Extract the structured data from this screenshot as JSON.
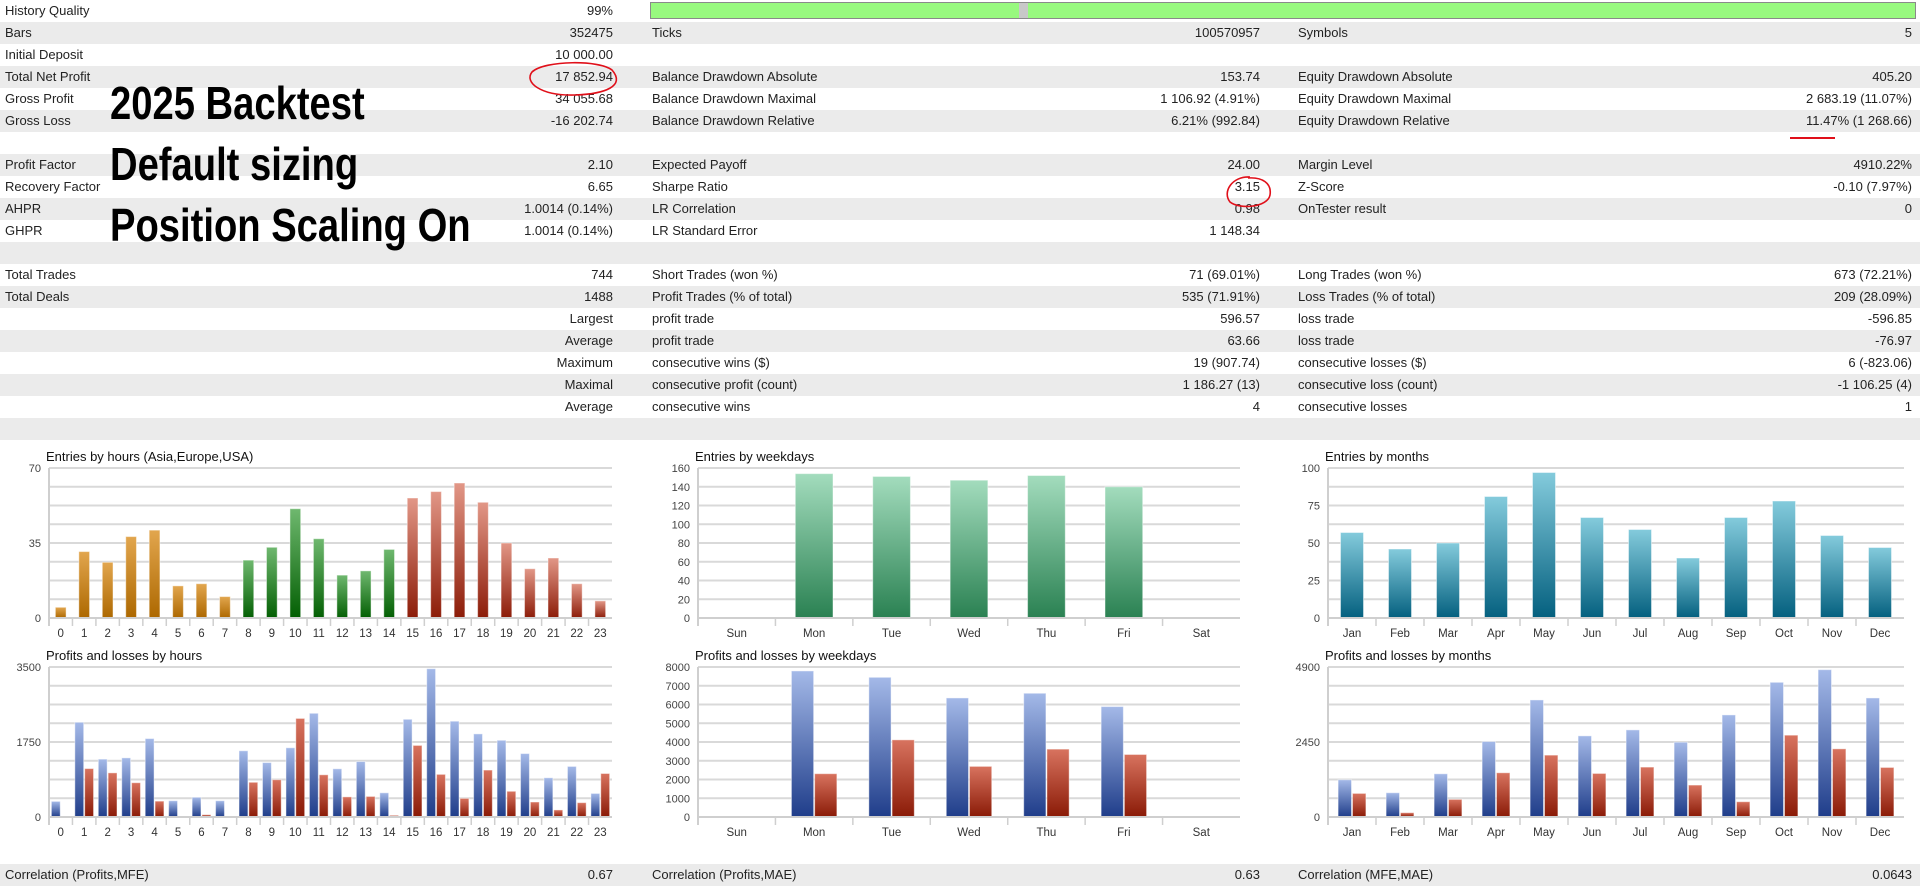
{
  "table": {
    "history_quality_fill": 0.99,
    "rows": [
      {
        "c1l": "History Quality",
        "c1v": "99%",
        "c2l": "",
        "c2v": "",
        "c3l": "",
        "c3v": ""
      },
      {
        "c1l": "Bars",
        "c1v": "352475",
        "c2l": "Ticks",
        "c2v": "100570957",
        "c3l": "Symbols",
        "c3v": "5"
      },
      {
        "c1l": "Initial Deposit",
        "c1v": "10 000.00",
        "c2l": "",
        "c2v": "",
        "c3l": "",
        "c3v": ""
      },
      {
        "c1l": "Total Net Profit",
        "c1v": "17 852.94",
        "c2l": "Balance Drawdown Absolute",
        "c2v": "153.74",
        "c3l": "Equity Drawdown Absolute",
        "c3v": "405.20"
      },
      {
        "c1l": "Gross Profit",
        "c1v": "34 055.68",
        "c2l": "Balance Drawdown Maximal",
        "c2v": "1 106.92 (4.91%)",
        "c3l": "Equity Drawdown Maximal",
        "c3v": "2 683.19 (11.07%)"
      },
      {
        "c1l": "Gross Loss",
        "c1v": "-16 202.74",
        "c2l": "Balance Drawdown Relative",
        "c2v": "6.21% (992.84)",
        "c3l": "Equity Drawdown Relative",
        "c3v": "11.47% (1 268.66)"
      },
      {
        "c1l": "",
        "c1v": "",
        "c2l": "",
        "c2v": "",
        "c3l": "",
        "c3v": ""
      },
      {
        "c1l": "Profit Factor",
        "c1v": "2.10",
        "c2l": "Expected Payoff",
        "c2v": "24.00",
        "c3l": "Margin Level",
        "c3v": "4910.22%"
      },
      {
        "c1l": "Recovery Factor",
        "c1v": "6.65",
        "c2l": "Sharpe Ratio",
        "c2v": "3.15",
        "c3l": "Z-Score",
        "c3v": "-0.10 (7.97%)"
      },
      {
        "c1l": "AHPR",
        "c1v": "1.0014 (0.14%)",
        "c2l": "LR Correlation",
        "c2v": "0.98",
        "c3l": "OnTester result",
        "c3v": "0"
      },
      {
        "c1l": "GHPR",
        "c1v": "1.0014 (0.14%)",
        "c2l": "LR Standard Error",
        "c2v": "1 148.34",
        "c3l": "",
        "c3v": ""
      },
      {
        "c1l": "",
        "c1v": "",
        "c2l": "",
        "c2v": "",
        "c3l": "",
        "c3v": ""
      },
      {
        "c1l": "Total Trades",
        "c1v": "744",
        "c2l": "Short Trades (won %)",
        "c2v": "71 (69.01%)",
        "c3l": "Long Trades (won %)",
        "c3v": "673 (72.21%)"
      },
      {
        "c1l": "Total Deals",
        "c1v": "1488",
        "c2l": "Profit Trades (% of total)",
        "c2v": "535 (71.91%)",
        "c3l": "Loss Trades (% of total)",
        "c3v": "209 (28.09%)"
      },
      {
        "c1l": "",
        "c1v": "Largest",
        "c2l": "profit trade",
        "c2v": "596.57",
        "c3l": "loss trade",
        "c3v": "-596.85"
      },
      {
        "c1l": "",
        "c1v": "Average",
        "c2l": "profit trade",
        "c2v": "63.66",
        "c3l": "loss trade",
        "c3v": "-76.97"
      },
      {
        "c1l": "",
        "c1v": "Maximum",
        "c2l": "consecutive wins ($)",
        "c2v": "19 (907.74)",
        "c3l": "consecutive losses ($)",
        "c3v": "6 (-823.06)"
      },
      {
        "c1l": "",
        "c1v": "Maximal",
        "c2l": "consecutive profit (count)",
        "c2v": "1 186.27 (13)",
        "c3l": "consecutive loss (count)",
        "c3v": "-1 106.25 (4)"
      },
      {
        "c1l": "",
        "c1v": "Average",
        "c2l": "consecutive wins",
        "c2v": "4",
        "c3l": "consecutive losses",
        "c3v": "1"
      },
      {
        "c1l": "",
        "c1v": "",
        "c2l": "",
        "c2v": "",
        "c3l": "",
        "c3v": ""
      }
    ],
    "correlation": {
      "c1l": "Correlation (Profits,MFE)",
      "c1v": "0.67",
      "c2l": "Correlation (Profits,MAE)",
      "c2v": "0.63",
      "c3l": "Correlation (MFE,MAE)",
      "c3v": "0.0643"
    }
  },
  "overlay": {
    "line1": "2025 Backtest",
    "line2": "Default sizing",
    "line3": "Position Scaling On"
  },
  "colors": {
    "annotation": "#e0101a",
    "quality_bar": "#98f97f"
  },
  "chart_data": [
    {
      "type": "bar",
      "title": "Entries by hours (Asia,Europe,USA)",
      "categories": [
        "0",
        "1",
        "2",
        "3",
        "4",
        "5",
        "6",
        "7",
        "8",
        "9",
        "10",
        "11",
        "12",
        "13",
        "14",
        "15",
        "16",
        "17",
        "18",
        "19",
        "20",
        "21",
        "22",
        "23"
      ],
      "series": [
        {
          "values": [
            5,
            31,
            26,
            38,
            41,
            15,
            16,
            10,
            27,
            33,
            51,
            37,
            20,
            22,
            32,
            56,
            59,
            63,
            54,
            35,
            23,
            28,
            16,
            8
          ]
        }
      ],
      "segment_colors": [
        {
          "range": [
            0,
            7
          ],
          "gradient": "orange"
        },
        {
          "range": [
            8,
            14
          ],
          "gradient": "green"
        },
        {
          "range": [
            15,
            23
          ],
          "gradient": "red"
        }
      ],
      "ylim": [
        0,
        70
      ],
      "yticks": [
        0,
        35,
        70
      ],
      "grid_step": 8.75,
      "grid": true
    },
    {
      "type": "bar",
      "title": "Entries by weekdays",
      "categories": [
        "Sun",
        "Mon",
        "Tue",
        "Wed",
        "Thu",
        "Fri",
        "Sat"
      ],
      "series": [
        {
          "values": [
            0,
            154,
            151,
            147,
            152,
            140,
            0
          ],
          "gradient": "mint"
        }
      ],
      "ylim": [
        0,
        160
      ],
      "yticks": [
        0,
        20,
        40,
        60,
        80,
        100,
        120,
        140,
        160
      ],
      "grid_step": 20,
      "grid": true
    },
    {
      "type": "bar",
      "title": "Entries by months",
      "categories": [
        "Jan",
        "Feb",
        "Mar",
        "Apr",
        "May",
        "Jun",
        "Jul",
        "Aug",
        "Sep",
        "Oct",
        "Nov",
        "Dec"
      ],
      "series": [
        {
          "values": [
            57,
            46,
            50,
            81,
            97,
            67,
            59,
            40,
            67,
            78,
            55,
            47
          ],
          "gradient": "teal"
        }
      ],
      "ylim": [
        0,
        100
      ],
      "yticks": [
        0,
        25,
        50,
        75,
        100
      ],
      "grid_step": 12.5,
      "grid": true
    },
    {
      "type": "bar",
      "title": "Profits and losses by hours",
      "categories": [
        "0",
        "1",
        "2",
        "3",
        "4",
        "5",
        "6",
        "7",
        "8",
        "9",
        "10",
        "11",
        "12",
        "13",
        "14",
        "15",
        "16",
        "17",
        "18",
        "19",
        "20",
        "21",
        "22",
        "23"
      ],
      "series": [
        {
          "values": [
            365,
            2210,
            1350,
            1380,
            1830,
            380,
            460,
            380,
            1545,
            1270,
            1615,
            2420,
            1125,
            1295,
            565,
            2280,
            3460,
            2235,
            1940,
            1790,
            1480,
            915,
            1180,
            550
          ],
          "gradient": "blue"
        },
        {
          "values": [
            0,
            1130,
            1030,
            800,
            370,
            15,
            54,
            15,
            810,
            870,
            2300,
            985,
            470,
            480,
            39,
            1670,
            995,
            435,
            1095,
            600,
            350,
            165,
            335,
            1015
          ],
          "gradient": "brick"
        }
      ],
      "ylim": [
        0,
        3500
      ],
      "yticks": [
        0,
        1750,
        3500
      ],
      "grid_step": 437.5,
      "grid": true
    },
    {
      "type": "bar",
      "title": "Profits and losses by weekdays",
      "categories": [
        "Sun",
        "Mon",
        "Tue",
        "Wed",
        "Thu",
        "Fri",
        "Sat"
      ],
      "series": [
        {
          "values": [
            0,
            7790,
            7450,
            6350,
            6600,
            5890,
            0
          ],
          "gradient": "blue"
        },
        {
          "values": [
            0,
            2310,
            4115,
            2700,
            3620,
            3335,
            0
          ],
          "gradient": "brick"
        }
      ],
      "ylim": [
        0,
        8000
      ],
      "yticks": [
        0,
        1000,
        2000,
        3000,
        4000,
        5000,
        6000,
        7000,
        8000
      ],
      "grid_step": 1000,
      "grid": true
    },
    {
      "type": "bar",
      "title": "Profits and losses by months",
      "categories": [
        "Jan",
        "Feb",
        "Mar",
        "Apr",
        "May",
        "Jun",
        "Jul",
        "Aug",
        "Sep",
        "Oct",
        "Nov",
        "Dec"
      ],
      "series": [
        {
          "values": [
            1217,
            793,
            1412,
            2466,
            3824,
            2651,
            2846,
            2444,
            3335,
            4400,
            4813,
            3889
          ],
          "gradient": "blue"
        },
        {
          "values": [
            771,
            141,
            576,
            1445,
            2021,
            1423,
            1630,
            1043,
            500,
            2673,
            2227,
            1619
          ],
          "gradient": "brick"
        }
      ],
      "ylim": [
        0,
        4900
      ],
      "yticks": [
        0,
        2450,
        4900
      ],
      "grid_step": 612.5,
      "grid": true
    }
  ]
}
